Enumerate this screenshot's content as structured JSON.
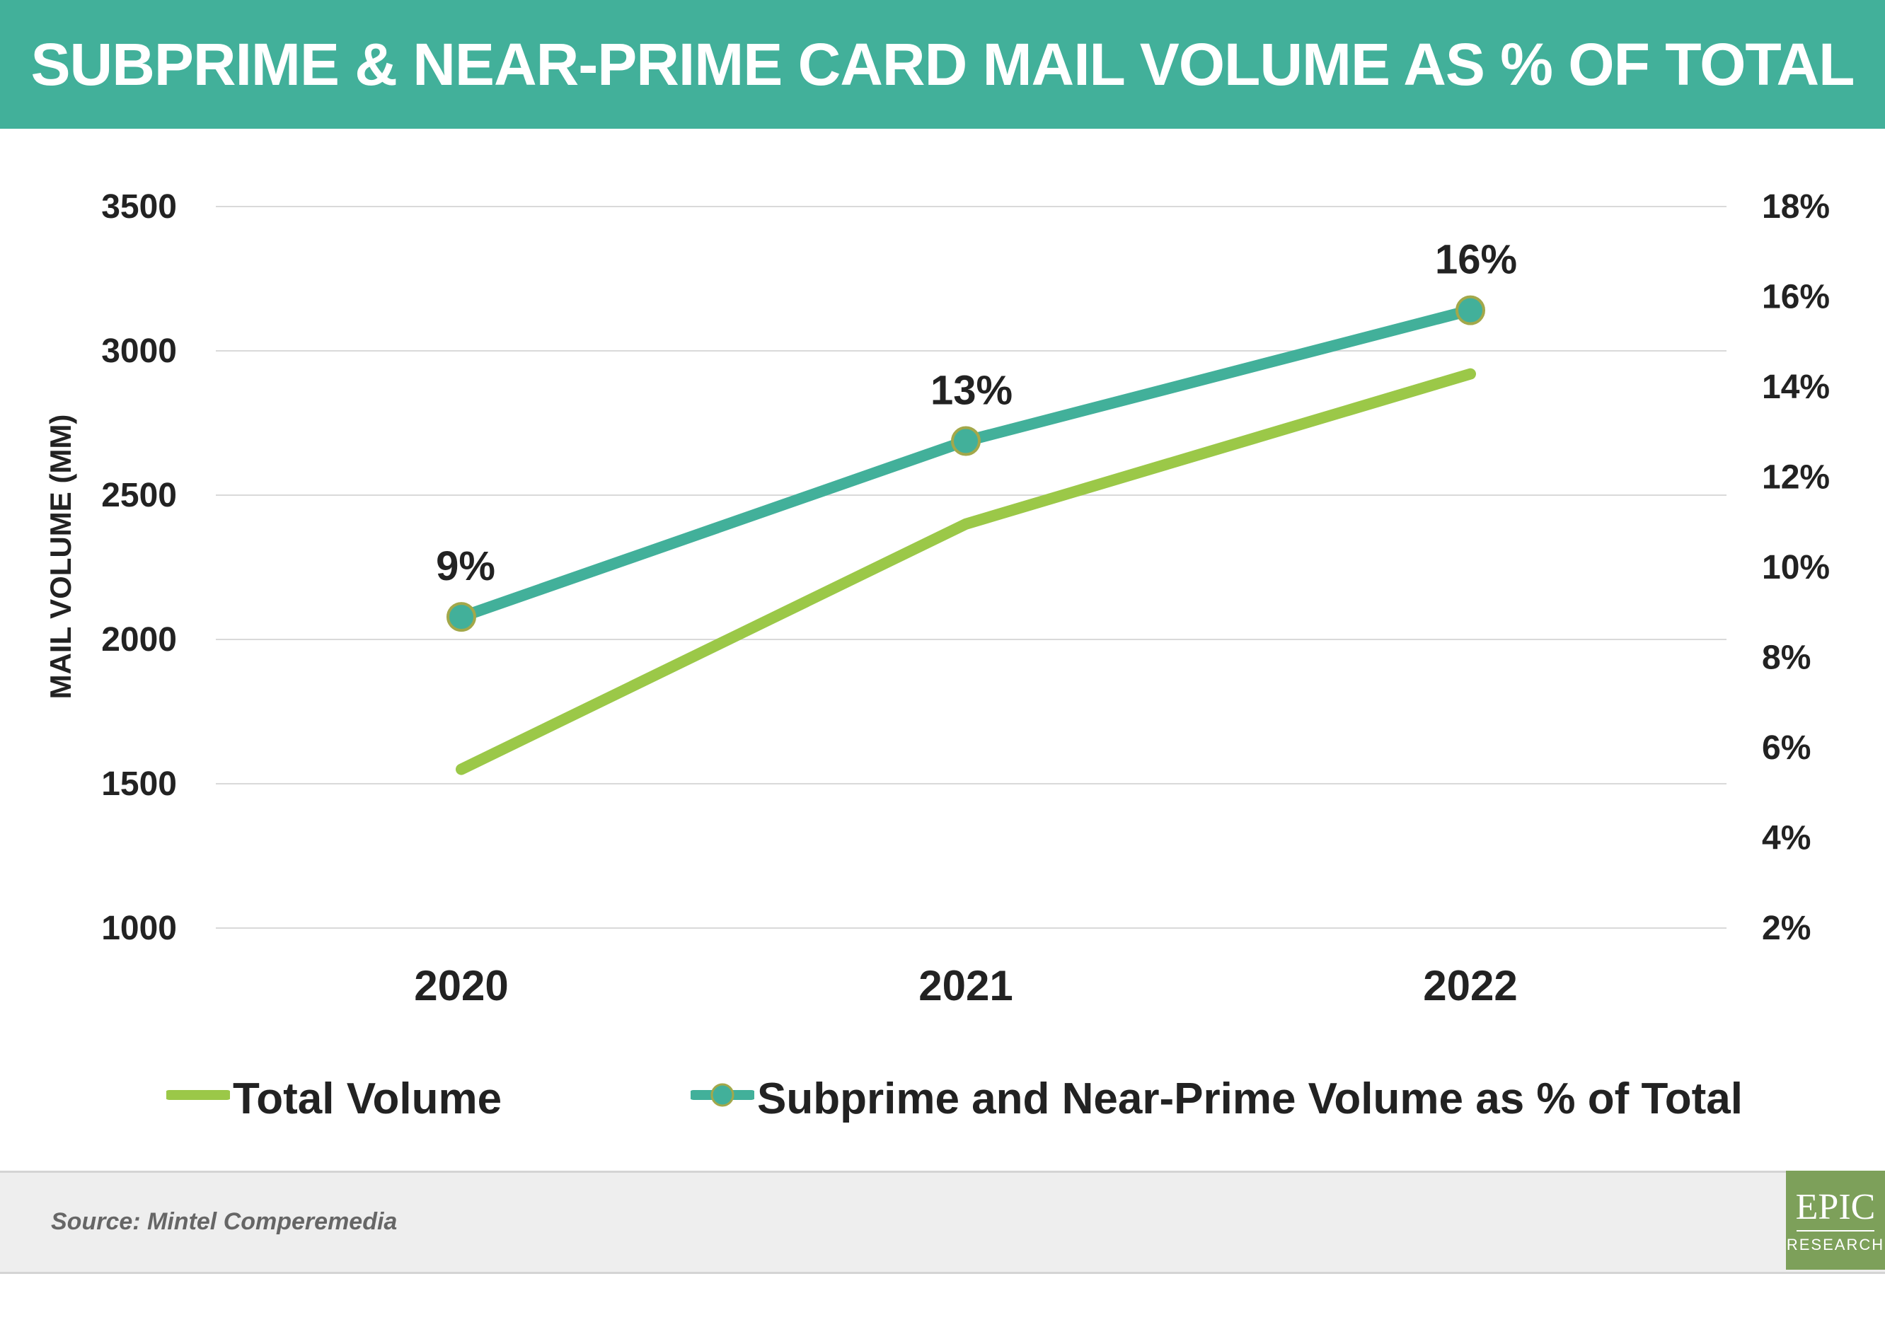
{
  "header": {
    "title": "SUBPRIME & NEAR-PRIME CARD MAIL VOLUME AS % OF TOTAL"
  },
  "chart_data": {
    "type": "line",
    "categories": [
      "2020",
      "2021",
      "2022"
    ],
    "ylabel": "MAIL VOLUME (MM)",
    "y_left": {
      "ylim": [
        1000,
        3500
      ],
      "ticks": [
        "1000",
        "1500",
        "2000",
        "2500",
        "3000",
        "3500"
      ]
    },
    "y_right": {
      "ylim": [
        2,
        18
      ],
      "ticks": [
        "2%",
        "4%",
        "6%",
        "8%",
        "10%",
        "12%",
        "14%",
        "16%",
        "18%"
      ]
    },
    "grid": true,
    "legend_position": "bottom",
    "series": [
      {
        "name": "Total Volume",
        "axis": "left",
        "values": [
          1550,
          2400,
          2920
        ],
        "color": "#9bc848"
      },
      {
        "name": "Subprime and Near-Prime Volume as % of Total",
        "axis": "right",
        "values": [
          8.9,
          12.8,
          15.7
        ],
        "labels": [
          "9%",
          "13%",
          "16%"
        ],
        "color": "#42b09a",
        "marker_fill": "#42b09a",
        "marker_edge": "#a3a84a"
      }
    ]
  },
  "footer": {
    "source": "Source: Mintel Comperemedia"
  },
  "logo": {
    "main": "EPIC",
    "sub": "RESEARCH",
    "color": "#7da05a"
  }
}
